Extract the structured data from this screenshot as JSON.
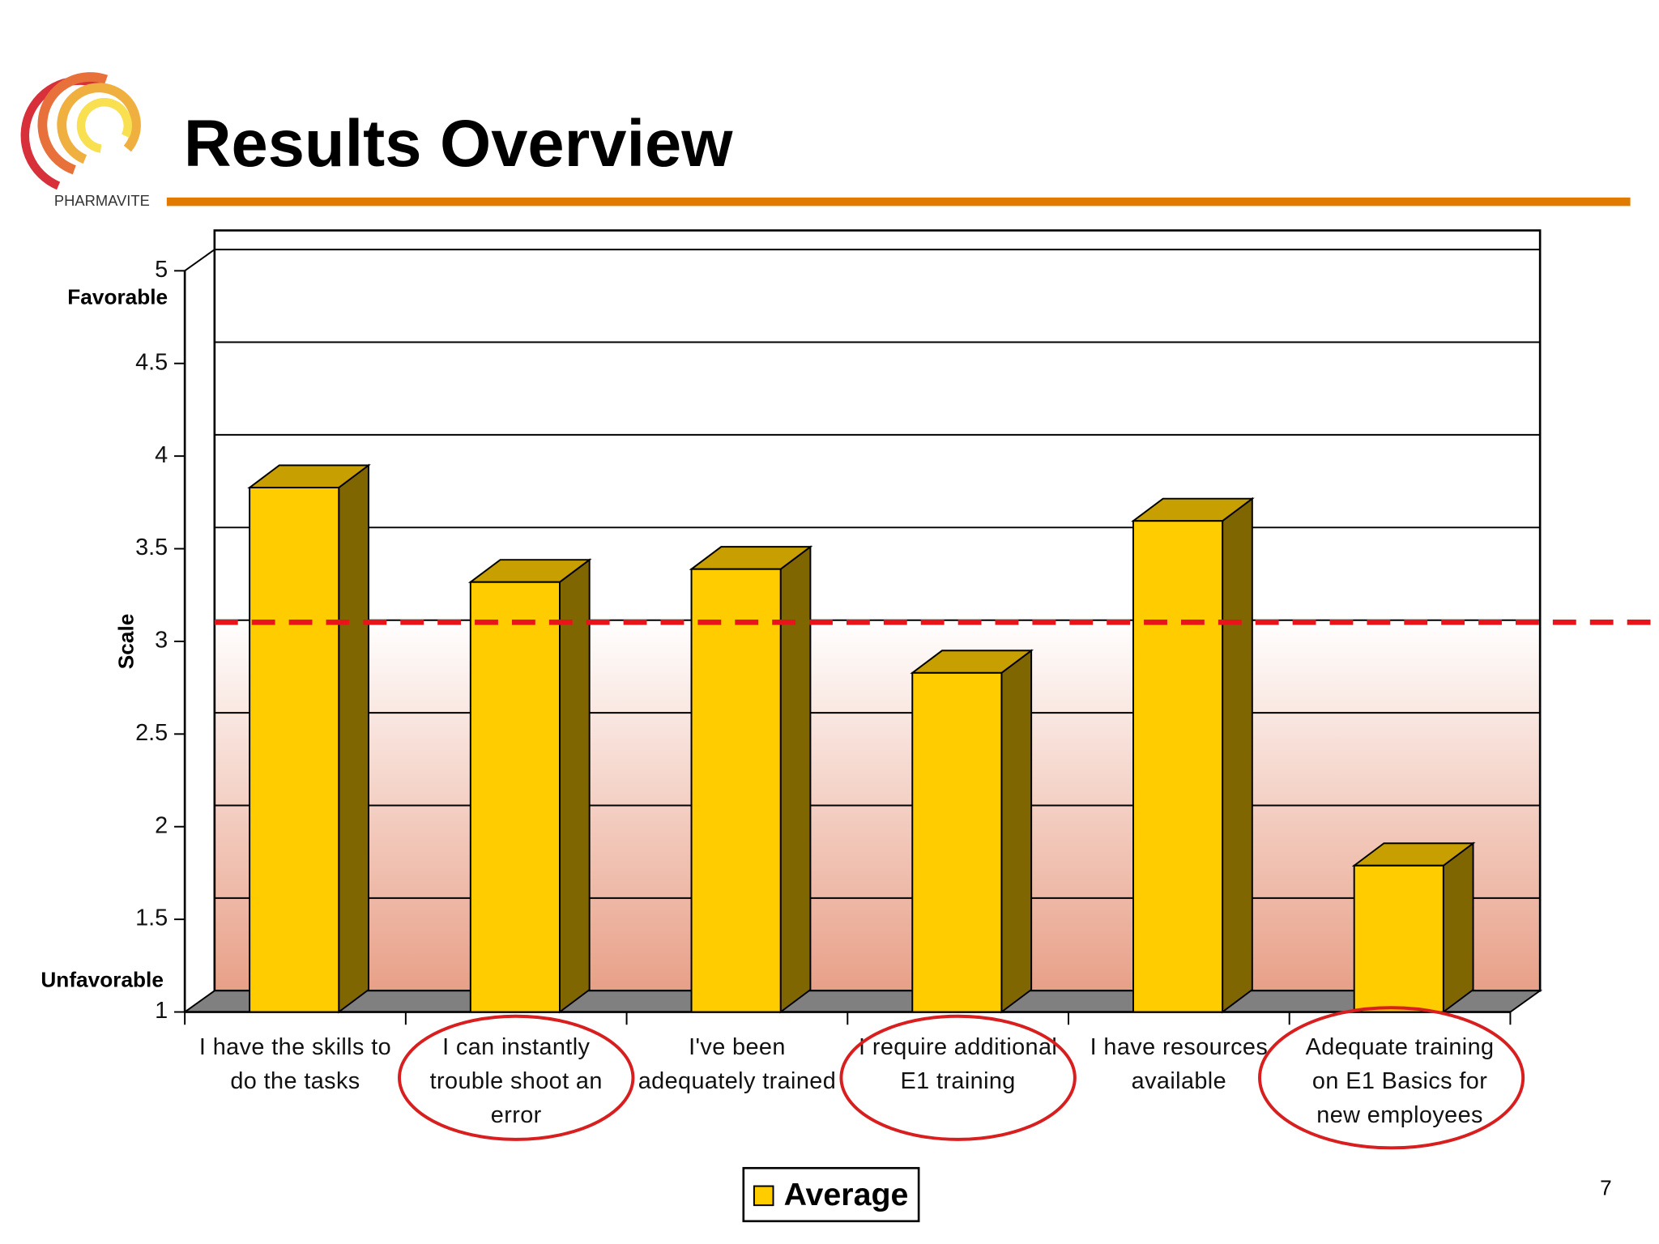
{
  "header": {
    "title": "Results Overview",
    "logo_text": "PHARMAVITE"
  },
  "chart_data": {
    "type": "bar3d",
    "categories": [
      "I have the skills to do the tasks",
      "I can instantly trouble shoot an error",
      "I've been adequately trained",
      "I require additional E1 training",
      "I have resources available",
      "Adequate training on E1 Basics for new employees"
    ],
    "series": [
      {
        "name": "Average",
        "color": "#ffcc00",
        "values": [
          3.83,
          3.32,
          3.39,
          2.83,
          3.65,
          1.79
        ]
      }
    ],
    "ylabel": "Scale",
    "top_label": "Favorable",
    "bottom_label": "Unfavorable",
    "ylim": [
      1,
      5
    ],
    "yticks": [
      1,
      1.5,
      2,
      2.5,
      3,
      3.5,
      4,
      4.5,
      5
    ],
    "grid": true,
    "reference_line": {
      "value": 3,
      "color": "#e8141a"
    },
    "highlighted": [
      1,
      3,
      5
    ],
    "highlight_color": "#d81e1e",
    "legend": "bottom"
  },
  "footer": {
    "page": "7"
  }
}
